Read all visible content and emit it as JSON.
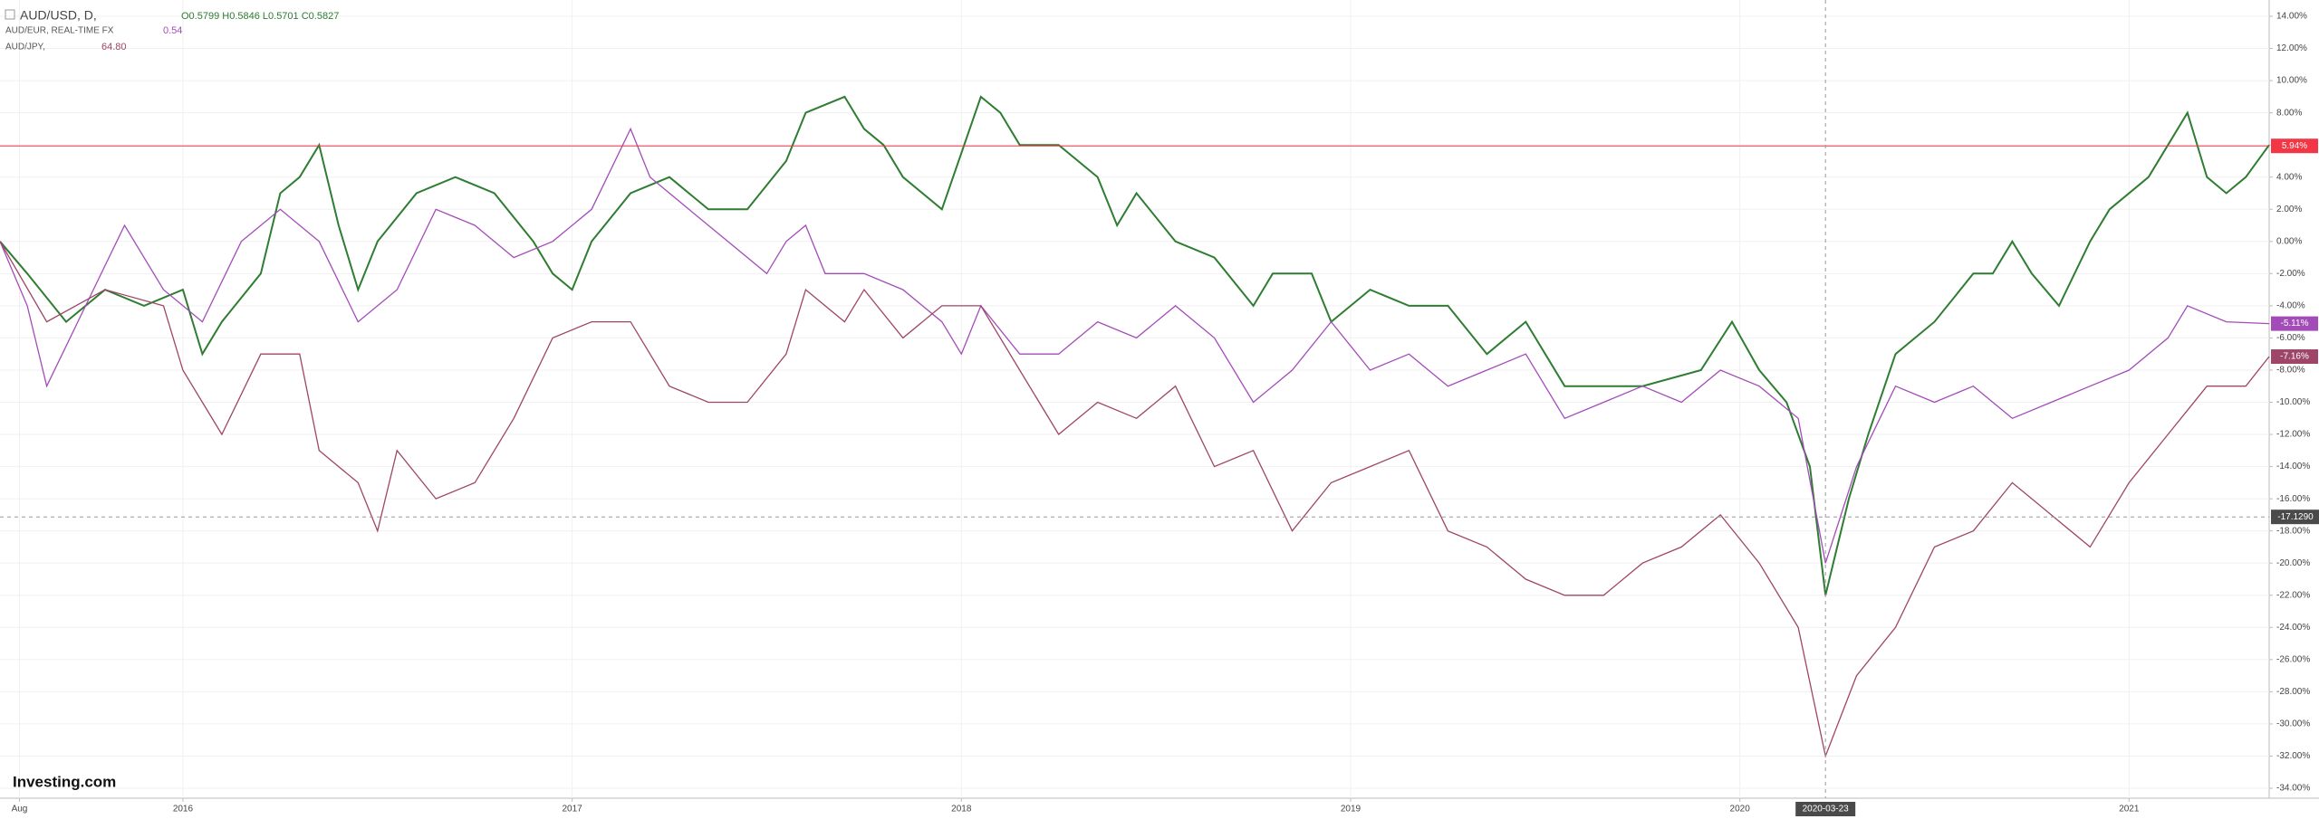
{
  "chart_data": {
    "type": "line",
    "header": {
      "symbol": "AUD/USD, D,",
      "ohlc": "O0.5799 H0.5846 L0.5701 C0.5827",
      "compare1": "AUD/EUR, REAL-TIME FX",
      "compare1_value": "0.54",
      "compare2": "AUD/JPY,",
      "compare2_value": "64.80"
    },
    "watermark": "Investing.com",
    "xlim": [
      2015.53,
      2021.36
    ],
    "xticks": [
      {
        "value": 2015.58,
        "label": "Aug"
      },
      {
        "value": 2016,
        "label": "2016"
      },
      {
        "value": 2017,
        "label": "2017"
      },
      {
        "value": 2018,
        "label": "2018"
      },
      {
        "value": 2019,
        "label": "2019"
      },
      {
        "value": 2020,
        "label": "2020"
      },
      {
        "value": 2021,
        "label": "2021"
      }
    ],
    "ylim": [
      -34,
      14
    ],
    "yticks": [
      {
        "value": 14,
        "label": "14.00%"
      },
      {
        "value": 12,
        "label": "12.00%"
      },
      {
        "value": 10,
        "label": "10.00%"
      },
      {
        "value": 8,
        "label": "8.00%"
      },
      {
        "value": 6,
        "label": "6.00%"
      },
      {
        "value": 4,
        "label": "4.00%"
      },
      {
        "value": 2,
        "label": "2.00%"
      },
      {
        "value": 0,
        "label": "0.00%"
      },
      {
        "value": -2,
        "label": "-2.00%"
      },
      {
        "value": -4,
        "label": "-4.00%"
      },
      {
        "value": -6,
        "label": "-6.00%"
      },
      {
        "value": -8,
        "label": "-8.00%"
      },
      {
        "value": -10,
        "label": "-10.00%"
      },
      {
        "value": -12,
        "label": "-12.00%"
      },
      {
        "value": -14,
        "label": "-14.00%"
      },
      {
        "value": -16,
        "label": "-16.00%"
      },
      {
        "value": -18,
        "label": "-18.00%"
      },
      {
        "value": -20,
        "label": "-20.00%"
      },
      {
        "value": -22,
        "label": "-22.00%"
      },
      {
        "value": -24,
        "label": "-24.00%"
      },
      {
        "value": -26,
        "label": "-26.00%"
      },
      {
        "value": -28,
        "label": "-28.00%"
      },
      {
        "value": -30,
        "label": "-30.00%"
      },
      {
        "value": -32,
        "label": "-32.00%"
      },
      {
        "value": -34,
        "label": "-34.00%"
      }
    ],
    "grid": true,
    "hline": {
      "value": 5.94,
      "label": "5.94%",
      "color": "#f23645"
    },
    "crosshair": {
      "x": {
        "value": 2020.22,
        "label": "2020-03-23"
      },
      "y": {
        "value": -17.129,
        "label": "-17.1290"
      }
    },
    "series": [
      {
        "name": "AUD/USD",
        "color": "#2e7d32",
        "x": [
          2015.53,
          2015.6,
          2015.7,
          2015.8,
          2015.9,
          2016.0,
          2016.05,
          2016.1,
          2016.2,
          2016.25,
          2016.3,
          2016.35,
          2016.4,
          2016.45,
          2016.5,
          2016.6,
          2016.7,
          2016.8,
          2016.9,
          2016.95,
          2017.0,
          2017.05,
          2017.15,
          2017.25,
          2017.35,
          2017.45,
          2017.55,
          2017.6,
          2017.7,
          2017.75,
          2017.8,
          2017.85,
          2017.95,
          2018.05,
          2018.1,
          2018.15,
          2018.25,
          2018.35,
          2018.4,
          2018.45,
          2018.55,
          2018.65,
          2018.75,
          2018.8,
          2018.9,
          2018.95,
          2019.05,
          2019.15,
          2019.25,
          2019.35,
          2019.45,
          2019.55,
          2019.65,
          2019.75,
          2019.9,
          2019.98,
          2020.05,
          2020.12,
          2020.18,
          2020.22,
          2020.28,
          2020.33,
          2020.4,
          2020.5,
          2020.6,
          2020.65,
          2020.7,
          2020.75,
          2020.82,
          2020.9,
          2020.95,
          2021.05,
          2021.1,
          2021.15,
          2021.2,
          2021.25,
          2021.3,
          2021.36
        ],
        "values": [
          0,
          -2,
          -5,
          -3,
          -4,
          -3,
          -7,
          -5,
          -2,
          3,
          4,
          6,
          1,
          -3,
          0,
          3,
          4,
          3,
          0,
          -2,
          -3,
          0,
          3,
          4,
          2,
          2,
          5,
          8,
          9,
          7,
          6,
          4,
          2,
          9,
          8,
          6,
          6,
          4,
          1,
          3,
          0,
          -1,
          -4,
          -2,
          -2,
          -5,
          -3,
          -4,
          -4,
          -7,
          -5,
          -9,
          -9,
          -9,
          -8,
          -5,
          -8,
          -10,
          -14,
          -22,
          -16,
          -12,
          -7,
          -5,
          -2,
          -2,
          0,
          -2,
          -4,
          0,
          2,
          4,
          6,
          8,
          4,
          3,
          4,
          6
        ]
      },
      {
        "name": "AUD/EUR",
        "color": "#a34cb8",
        "x": [
          2015.53,
          2015.6,
          2015.65,
          2015.75,
          2015.85,
          2015.95,
          2016.05,
          2016.15,
          2016.25,
          2016.35,
          2016.45,
          2016.55,
          2016.65,
          2016.75,
          2016.85,
          2016.95,
          2017.05,
          2017.15,
          2017.2,
          2017.3,
          2017.4,
          2017.5,
          2017.55,
          2017.6,
          2017.65,
          2017.75,
          2017.85,
          2017.95,
          2018.0,
          2018.05,
          2018.15,
          2018.25,
          2018.35,
          2018.45,
          2018.55,
          2018.65,
          2018.75,
          2018.85,
          2018.95,
          2019.05,
          2019.15,
          2019.25,
          2019.35,
          2019.45,
          2019.55,
          2019.65,
          2019.75,
          2019.85,
          2019.95,
          2020.05,
          2020.15,
          2020.22,
          2020.3,
          2020.4,
          2020.5,
          2020.6,
          2020.7,
          2020.8,
          2020.9,
          2021.0,
          2021.1,
          2021.15,
          2021.25,
          2021.36
        ],
        "values": [
          0,
          -4,
          -9,
          -4,
          1,
          -3,
          -5,
          0,
          2,
          0,
          -5,
          -3,
          2,
          1,
          -1,
          0,
          2,
          7,
          4,
          2,
          0,
          -2,
          0,
          1,
          -2,
          -2,
          -3,
          -5,
          -7,
          -4,
          -7,
          -7,
          -5,
          -6,
          -4,
          -6,
          -10,
          -8,
          -5,
          -8,
          -7,
          -9,
          -8,
          -7,
          -11,
          -10,
          -9,
          -10,
          -8,
          -9,
          -11,
          -20,
          -14,
          -9,
          -10,
          -9,
          -11,
          -10,
          -9,
          -8,
          -6,
          -4,
          -5,
          -5.11
        ],
        "last": {
          "value": -5.11,
          "label": "-5.11%"
        }
      },
      {
        "name": "AUD/JPY",
        "color": "#9e4668",
        "x": [
          2015.53,
          2015.65,
          2015.8,
          2015.95,
          2016.0,
          2016.1,
          2016.2,
          2016.3,
          2016.35,
          2016.45,
          2016.5,
          2016.55,
          2016.65,
          2016.75,
          2016.85,
          2016.95,
          2017.05,
          2017.15,
          2017.25,
          2017.35,
          2017.45,
          2017.55,
          2017.6,
          2017.7,
          2017.75,
          2017.85,
          2017.95,
          2018.05,
          2018.15,
          2018.25,
          2018.35,
          2018.45,
          2018.55,
          2018.65,
          2018.75,
          2018.85,
          2018.95,
          2019.05,
          2019.15,
          2019.25,
          2019.35,
          2019.45,
          2019.55,
          2019.65,
          2019.75,
          2019.85,
          2019.95,
          2020.05,
          2020.15,
          2020.22,
          2020.3,
          2020.4,
          2020.5,
          2020.6,
          2020.7,
          2020.8,
          2020.9,
          2021.0,
          2021.1,
          2021.2,
          2021.3,
          2021.36
        ],
        "values": [
          0,
          -5,
          -3,
          -4,
          -8,
          -12,
          -7,
          -7,
          -13,
          -15,
          -18,
          -13,
          -16,
          -15,
          -11,
          -6,
          -5,
          -5,
          -9,
          -10,
          -10,
          -7,
          -3,
          -5,
          -3,
          -6,
          -4,
          -4,
          -8,
          -12,
          -10,
          -11,
          -9,
          -14,
          -13,
          -18,
          -15,
          -14,
          -13,
          -18,
          -19,
          -21,
          -22,
          -22,
          -20,
          -19,
          -17,
          -20,
          -24,
          -32,
          -27,
          -24,
          -19,
          -18,
          -15,
          -17,
          -19,
          -15,
          -12,
          -9,
          -9,
          -7.16
        ],
        "last": {
          "value": -7.16,
          "label": "-7.16%"
        }
      }
    ]
  }
}
